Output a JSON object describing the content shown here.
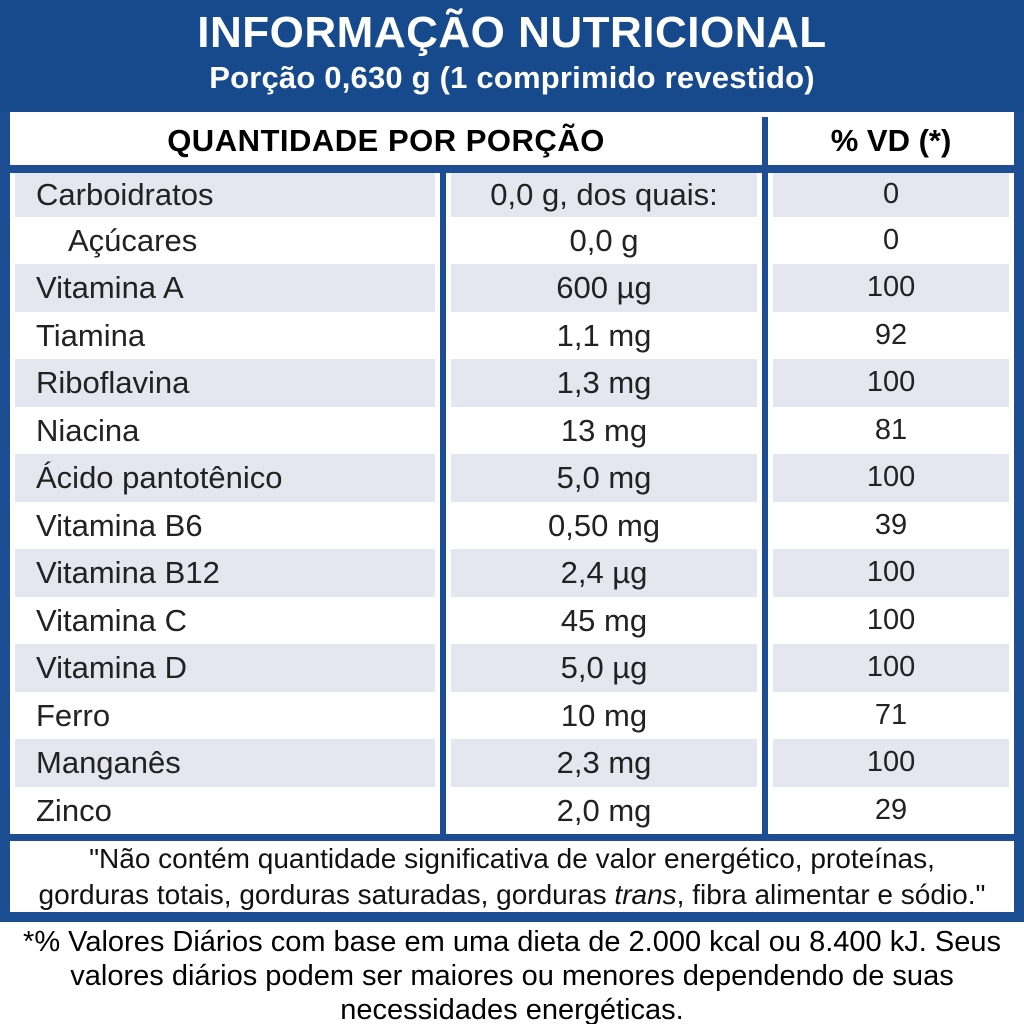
{
  "header": {
    "title": "INFORMAÇÃO NUTRICIONAL",
    "subtitle": "Porção 0,630 g (1 comprimido revestido)"
  },
  "table": {
    "columns": {
      "quantity": "QUANTIDADE POR PORÇÃO",
      "daily_value": "% VD (*)"
    },
    "rows": [
      {
        "name": "Carboidratos",
        "amount": "0,0 g, dos quais:",
        "vd": "0"
      },
      {
        "name": "Açúcares",
        "amount": "0,0 g",
        "vd": "0"
      },
      {
        "name": "Vitamina A",
        "amount": "600 µg",
        "vd": "100"
      },
      {
        "name": "Tiamina",
        "amount": "1,1 mg",
        "vd": "92"
      },
      {
        "name": "Riboflavina",
        "amount": "1,3 mg",
        "vd": "100"
      },
      {
        "name": "Niacina",
        "amount": "13 mg",
        "vd": "81"
      },
      {
        "name": "Ácido pantotênico",
        "amount": "5,0 mg",
        "vd": "100"
      },
      {
        "name": "Vitamina B6",
        "amount": "0,50 mg",
        "vd": "39"
      },
      {
        "name": "Vitamina B12",
        "amount": "2,4 µg",
        "vd": "100"
      },
      {
        "name": "Vitamina C",
        "amount": "45 mg",
        "vd": "100"
      },
      {
        "name": "Vitamina D",
        "amount": "5,0 µg",
        "vd": "100"
      },
      {
        "name": "Ferro",
        "amount": "10 mg",
        "vd": "71"
      },
      {
        "name": "Manganês",
        "amount": "2,3 mg",
        "vd": "100"
      },
      {
        "name": "Zinco",
        "amount": "2,0 mg",
        "vd": "29"
      }
    ]
  },
  "disclaimer": {
    "line1": "\"Não contém quantidade significativa de valor energético, proteínas,",
    "line2_pre": "gorduras totais, gorduras saturadas, gorduras ",
    "line2_italic": "trans",
    "line2_post": ", fibra alimentar e sódio.\""
  },
  "footnote": {
    "lines": [
      "*% Valores Diários com base em uma dieta de 2.000 kcal ou 8.400 kJ. Seus",
      "valores diários podem ser maiores ou menores dependendo de suas",
      "necessidades energéticas."
    ]
  },
  "colors": {
    "band_blue": "#17498d",
    "border_blue": "#1d4e94",
    "stripe": "#e5e7f0",
    "row_text": "#222222"
  }
}
